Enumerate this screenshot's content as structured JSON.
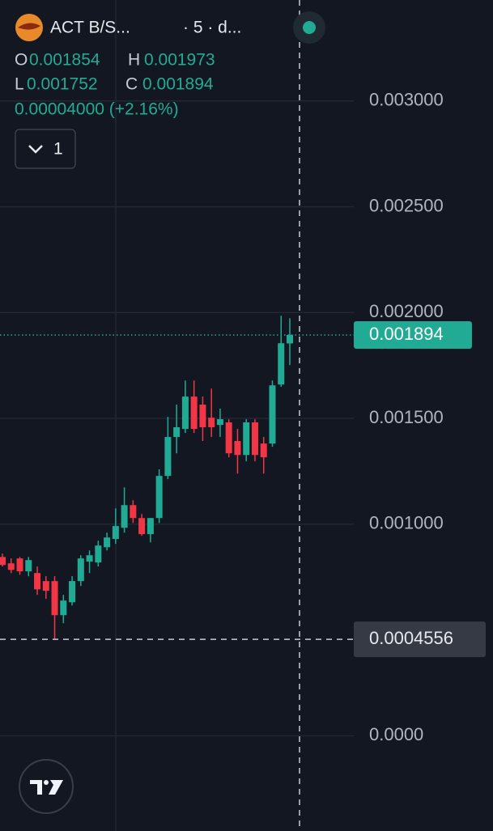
{
  "chart_data": {
    "type": "candlestick",
    "title": "ACT B/S...",
    "subtitle": "· 5 · d...",
    "legend": {
      "open_label": "O",
      "open": 0.001854,
      "high_label": "H",
      "high": 0.001973,
      "low_label": "L",
      "low": 0.001752,
      "close_label": "C",
      "close": 0.001894,
      "change": "0.00004000 (+2.16%)"
    },
    "indicator_count": "1",
    "up_color": "#22ab94",
    "down_color": "#f23645",
    "open": [
      0.000845,
      0.000815,
      0.000838,
      0.000777,
      0.000769,
      0.000731,
      0.000731,
      0.00057,
      0.000631,
      0.000731,
      0.000823,
      0.000819,
      0.000891,
      0.00093,
      0.000983,
      0.00109,
      0.001029,
      0.000953,
      0.001029,
      0.001228,
      0.001412,
      0.00145,
      0.001603,
      0.001565,
      0.001503,
      0.001469,
      0.001481,
      0.001393,
      0.001327,
      0.001481,
      0.001381,
      0.001381,
      0.00166,
      0.001854
    ],
    "high": [
      0.000861,
      0.000838,
      0.000845,
      0.000845,
      0.0008,
      0.000754,
      0.000754,
      0.000666,
      0.000754,
      0.000853,
      0.000876,
      0.000922,
      0.00096,
      0.001075,
      0.001174,
      0.001113,
      0.001048,
      0.001029,
      0.001259,
      0.001507,
      0.001565,
      0.001679,
      0.001679,
      0.001603,
      0.001641,
      0.001546,
      0.001496,
      0.00145,
      0.001496,
      0.001496,
      0.001412,
      0.001679,
      0.001985,
      0.001973
    ],
    "low": [
      0.0008,
      0.000769,
      0.000761,
      0.000754,
      0.000666,
      0.000647,
      0.000456,
      0.000532,
      0.000616,
      0.000708,
      0.000769,
      0.0008,
      0.000876,
      0.000907,
      0.00096,
      0.001006,
      0.000945,
      0.000914,
      0.001006,
      0.001213,
      0.001335,
      0.001431,
      0.001431,
      0.001393,
      0.001412,
      0.001412,
      0.001316,
      0.001239,
      0.001297,
      0.001297,
      0.001239,
      0.001366,
      0.001649,
      0.001752
    ],
    "close": [
      0.000807,
      0.000784,
      0.000777,
      0.00083,
      0.000692,
      0.000685,
      0.00057,
      0.000639,
      0.000731,
      0.000838,
      0.000853,
      0.000899,
      0.000937,
      0.000991,
      0.00109,
      0.001029,
      0.000953,
      0.001029,
      0.001228,
      0.001412,
      0.001458,
      0.001603,
      0.00145,
      0.001458,
      0.001458,
      0.001496,
      0.001335,
      0.001327,
      0.001481,
      0.001327,
      0.001316,
      0.001656,
      0.001855,
      0.001894
    ],
    "ylim": [
      -0.00045,
      0.003477
    ],
    "yticks": [
      {
        "value": 0.003,
        "label": "0.003000"
      },
      {
        "value": 0.0025,
        "label": "0.002500"
      },
      {
        "value": 0.002,
        "label": "0.002000"
      },
      {
        "value": 0.0015,
        "label": "0.001500"
      },
      {
        "value": 0.001,
        "label": "0.001000"
      },
      {
        "value": 0,
        "label": "0.0000"
      }
    ],
    "grid": true,
    "last_price": 0.001894,
    "crosshair_price": 0.0004556
  }
}
